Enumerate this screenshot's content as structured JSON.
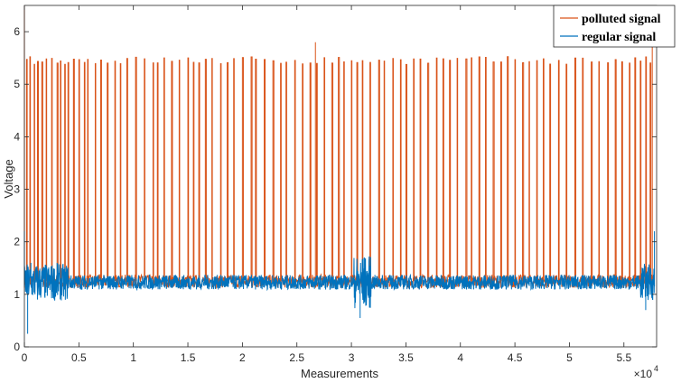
{
  "chart_data": {
    "type": "line",
    "xlabel": "Measurements",
    "ylabel": "Voltage",
    "x_exponent_label": "×10",
    "x_exponent_power": "4",
    "xlim": [
      0,
      5.8
    ],
    "ylim": [
      0,
      6.5
    ],
    "x_ticks": [
      0,
      0.5,
      1,
      1.5,
      2,
      2.5,
      3,
      3.5,
      4,
      4.5,
      5,
      5.5
    ],
    "x_tick_labels": [
      "0",
      "0.5",
      "1",
      "1.5",
      "2",
      "2.5",
      "3",
      "3.5",
      "4",
      "4.5",
      "5",
      "5.5"
    ],
    "y_ticks": [
      0,
      1,
      2,
      3,
      4,
      5,
      6
    ],
    "y_tick_labels": [
      "0",
      "1",
      "2",
      "3",
      "4",
      "5",
      "6"
    ],
    "grid": false,
    "legend_position": "top-right",
    "series": [
      {
        "name": "polluted signal",
        "color": "#D95319",
        "baseline": 1.25,
        "spike_level": 5.45,
        "spike_positions": [
          0.02,
          0.05,
          0.09,
          0.12,
          0.16,
          0.2,
          0.25,
          0.3,
          0.33,
          0.37,
          0.4,
          0.45,
          0.5,
          0.55,
          0.58,
          0.65,
          0.7,
          0.76,
          0.83,
          0.88,
          0.94,
          1.02,
          1.1,
          1.18,
          1.22,
          1.28,
          1.35,
          1.42,
          1.5,
          1.55,
          1.6,
          1.66,
          1.72,
          1.8,
          1.86,
          1.92,
          2.0,
          2.08,
          2.12,
          2.2,
          2.28,
          2.35,
          2.4,
          2.48,
          2.55,
          2.62,
          2.68,
          2.75,
          2.82,
          2.88,
          2.93,
          3.0,
          3.05,
          3.1,
          3.17,
          3.25,
          3.3,
          3.38,
          3.45,
          3.5,
          3.57,
          3.63,
          3.7,
          3.78,
          3.84,
          3.9,
          3.97,
          4.05,
          4.1,
          4.17,
          4.23,
          4.3,
          4.37,
          4.43,
          4.5,
          4.57,
          4.63,
          4.7,
          4.76,
          4.82,
          4.9,
          4.97,
          5.05,
          5.12,
          5.2,
          5.27,
          5.35,
          5.42,
          5.48,
          5.55,
          5.6,
          5.65,
          5.7,
          5.74
        ],
        "peak_values": [
          {
            "x": 0.0,
            "y": 6.5
          },
          {
            "x": 2.67,
            "y": 5.8
          },
          {
            "x": 5.76,
            "y": 6.3
          }
        ]
      },
      {
        "name": "regular signal",
        "color": "#0072BD",
        "baseline": 1.15,
        "band": [
          1.05,
          1.4
        ],
        "points": [
          {
            "x": 0.0,
            "y": 2.2
          },
          {
            "x": 0.03,
            "y": 0.25
          },
          {
            "x": 0.06,
            "y": 1.6
          },
          {
            "x": 0.12,
            "y": 0.9
          },
          {
            "x": 0.3,
            "y": 1.6
          },
          {
            "x": 3.08,
            "y": 0.55
          },
          {
            "x": 3.12,
            "y": 1.7
          },
          {
            "x": 5.7,
            "y": 0.7
          },
          {
            "x": 5.78,
            "y": 2.2
          }
        ]
      }
    ]
  }
}
